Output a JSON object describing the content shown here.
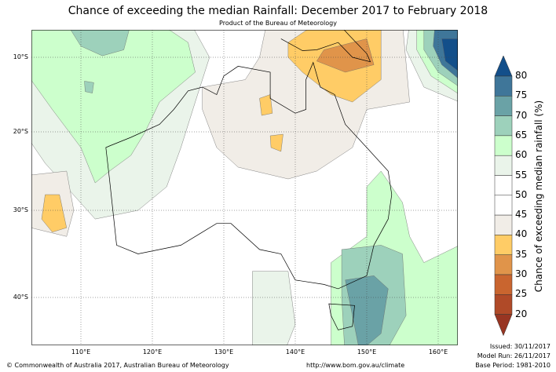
{
  "title": "Chance of exceeding the median Rainfall: December 2017 to February 2018",
  "subtitle": "Product of the Bureau of Meteorology",
  "axes": {
    "lon": [
      "110°E",
      "120°E",
      "130°E",
      "140°E",
      "150°E",
      "160°E"
    ],
    "lat": [
      "10°S",
      "20°S",
      "30°S",
      "40°S"
    ]
  },
  "colorbar": {
    "title": "Chance of exceeding median rainfall (%)",
    "ticks": [
      "80",
      "75",
      "70",
      "65",
      "60",
      "55",
      "50",
      "45",
      "40",
      "35",
      "30",
      "25",
      "20"
    ],
    "colors": [
      "#134f8a",
      "#3f7699",
      "#6aa2a6",
      "#9dd1bb",
      "#ccffcc",
      "#eaf4ea",
      "#ffffff",
      "#ffffff",
      "#f1ede7",
      "#ffcc66",
      "#e0944a",
      "#c9652f",
      "#b04a28",
      "#983522"
    ]
  },
  "footer": {
    "copyright": "© Commonwealth of Australia 2017, Australian Bureau of Meteorology",
    "url": "http://www.bom.gov.au/climate",
    "issued": "Issued: 30/11/2017",
    "model_run": "Model Run: 26/11/2017",
    "base_period": "Base Period: 1981-2010"
  }
}
